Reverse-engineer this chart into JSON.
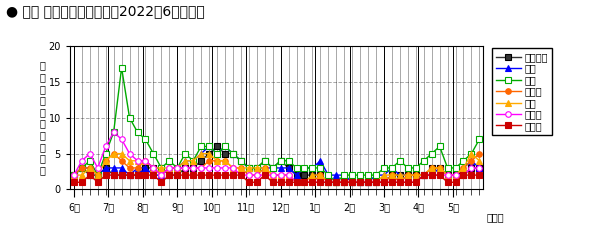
{
  "title": "● 県内 保健所別発生動向（2022年6月以降）",
  "ylabel_chars": [
    "定",
    "点",
    "当",
    "た",
    "り",
    "患",
    "者",
    "報",
    "告",
    "数"
  ],
  "xlabel_note": "（週）",
  "ylim": [
    0,
    20
  ],
  "yticks": [
    0,
    5,
    10,
    15,
    20
  ],
  "month_labels": [
    "6月",
    "7月",
    "8月",
    "9月",
    "10月",
    "11月",
    "12月",
    "1月",
    "2月",
    "3月",
    "4月",
    "5月"
  ],
  "month_positions": [
    0,
    4.33,
    8.67,
    13.0,
    17.33,
    21.67,
    26.0,
    30.33,
    34.67,
    39.0,
    43.33,
    47.67
  ],
  "n_points": 52,
  "series": {
    "四国中央": {
      "color": "#333333",
      "marker": "s",
      "markersize": 4,
      "markerfacecolor": "#333333",
      "markeredgecolor": "#000000",
      "linewidth": 1.0,
      "values": [
        2,
        3,
        2,
        2,
        3,
        2,
        2,
        2,
        2,
        3,
        3,
        3,
        2,
        2,
        3,
        3,
        4,
        5,
        6,
        5,
        5,
        4,
        3,
        3,
        4,
        3,
        4,
        3,
        2,
        2,
        2,
        2,
        1,
        1,
        1,
        1,
        1,
        1,
        1,
        1,
        2,
        2,
        2,
        2,
        2,
        3,
        3,
        2,
        2,
        2,
        3,
        3
      ]
    },
    "西条": {
      "color": "#0000ff",
      "marker": "^",
      "markersize": 4,
      "markerfacecolor": "#0000ff",
      "markeredgecolor": "#0000ff",
      "linewidth": 1.0,
      "values": [
        2,
        3,
        3,
        2,
        3,
        3,
        3,
        2,
        3,
        3,
        2,
        2,
        3,
        3,
        4,
        4,
        5,
        6,
        5,
        6,
        5,
        4,
        3,
        3,
        3,
        3,
        3,
        3,
        2,
        3,
        3,
        4,
        2,
        2,
        2,
        1,
        1,
        1,
        2,
        2,
        3,
        2,
        2,
        2,
        2,
        2,
        3,
        2,
        2,
        3,
        4,
        3
      ]
    },
    "今治": {
      "color": "#00aa00",
      "marker": "s",
      "markersize": 4,
      "markerfacecolor": "#ffffff",
      "markeredgecolor": "#00aa00",
      "linewidth": 1.0,
      "values": [
        2,
        3,
        4,
        2,
        5,
        8,
        17,
        10,
        8,
        7,
        5,
        3,
        4,
        3,
        5,
        4,
        6,
        6,
        5,
        6,
        5,
        4,
        3,
        3,
        4,
        3,
        4,
        4,
        3,
        3,
        3,
        3,
        2,
        1,
        2,
        2,
        2,
        2,
        2,
        3,
        3,
        4,
        3,
        3,
        4,
        5,
        6,
        3,
        3,
        4,
        5,
        7
      ]
    },
    "松山市": {
      "color": "#ff6600",
      "marker": "o",
      "markersize": 4,
      "markerfacecolor": "#ff6600",
      "markeredgecolor": "#ff6600",
      "linewidth": 1.0,
      "values": [
        2,
        3,
        3,
        2,
        4,
        5,
        4,
        3,
        3,
        4,
        3,
        2,
        3,
        3,
        3,
        3,
        3,
        4,
        4,
        4,
        3,
        3,
        2,
        2,
        3,
        2,
        2,
        2,
        1,
        1,
        1,
        2,
        1,
        1,
        1,
        1,
        1,
        1,
        1,
        1,
        2,
        1,
        2,
        2,
        2,
        3,
        3,
        2,
        2,
        3,
        4,
        5
      ]
    },
    "中予": {
      "color": "#ffaa00",
      "marker": "^",
      "markersize": 4,
      "markerfacecolor": "#ffaa00",
      "markeredgecolor": "#ffaa00",
      "linewidth": 1.0,
      "values": [
        2,
        2,
        3,
        2,
        4,
        5,
        5,
        4,
        4,
        4,
        3,
        3,
        3,
        3,
        4,
        4,
        5,
        5,
        4,
        4,
        3,
        3,
        3,
        3,
        3,
        2,
        2,
        2,
        1,
        1,
        2,
        2,
        1,
        1,
        1,
        1,
        1,
        1,
        1,
        2,
        2,
        2,
        2,
        2,
        2,
        3,
        3,
        2,
        2,
        3,
        5,
        4
      ]
    },
    "八幡浜": {
      "color": "#ff00ff",
      "marker": "o",
      "markersize": 4,
      "markerfacecolor": "#ffffff",
      "markeredgecolor": "#ff00ff",
      "linewidth": 1.0,
      "values": [
        2,
        4,
        5,
        3,
        6,
        8,
        7,
        5,
        4,
        4,
        3,
        2,
        3,
        3,
        3,
        3,
        3,
        3,
        3,
        3,
        3,
        2,
        2,
        2,
        2,
        2,
        2,
        2,
        1,
        1,
        1,
        1,
        1,
        1,
        1,
        1,
        1,
        1,
        1,
        1,
        1,
        1,
        1,
        1,
        2,
        2,
        2,
        2,
        2,
        2,
        3,
        3
      ]
    },
    "宇和島": {
      "color": "#cc0000",
      "marker": "s",
      "markersize": 4,
      "markerfacecolor": "#cc0000",
      "markeredgecolor": "#cc0000",
      "linewidth": 1.0,
      "values": [
        1,
        1,
        2,
        1,
        2,
        2,
        2,
        2,
        2,
        2,
        2,
        1,
        2,
        2,
        2,
        2,
        2,
        2,
        2,
        2,
        2,
        2,
        1,
        1,
        2,
        1,
        1,
        1,
        1,
        1,
        1,
        1,
        1,
        1,
        1,
        1,
        1,
        1,
        1,
        1,
        1,
        1,
        1,
        1,
        2,
        2,
        2,
        1,
        1,
        2,
        2,
        2
      ]
    }
  },
  "background_color": "#ffffff",
  "grid_color": "#aaaaaa",
  "grid_linestyle": "--",
  "title_fontsize": 10,
  "tick_fontsize": 7,
  "legend_fontsize": 7,
  "ylabel_fontsize": 7
}
